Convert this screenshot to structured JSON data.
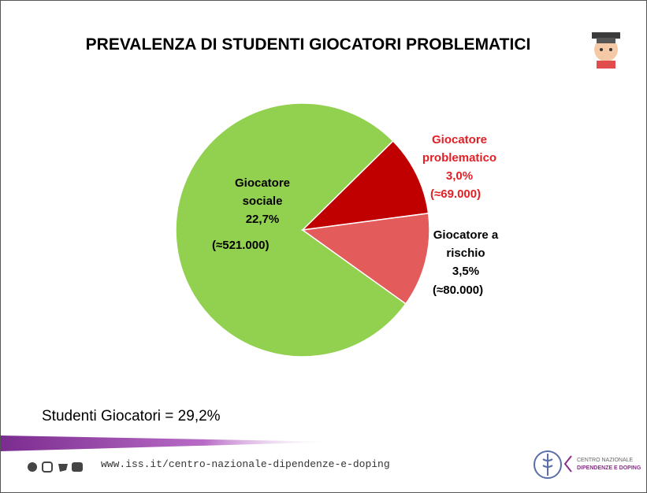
{
  "header": {
    "title": "PREVALENZA DI STUDENTI GIOCATORI PROBLEMATICI"
  },
  "chart_data": {
    "type": "pie",
    "categories": [
      "Giocatore sociale",
      "Giocatore problematico",
      "Giocatore a rischio"
    ],
    "values": [
      22.7,
      3.0,
      3.5
    ],
    "value_labels": [
      "22,7%",
      "3,0%",
      "3,5%"
    ],
    "annotations": [
      "(≈521.000)",
      "(≈69.000)",
      "(≈80.000)"
    ],
    "colors": [
      "#92d050",
      "#c00000",
      "#e35b5b"
    ],
    "label_colors": [
      "#000000",
      "#e31f26",
      "#000000"
    ]
  },
  "summary": "Studenti Giocatori = 29,2%",
  "footer": {
    "url": "www.iss.it/centro-nazionale-dipendenze-e-doping",
    "logo_line1": "CENTRO NAZIONALE",
    "logo_line2": "DIPENDENZE E DOPING"
  }
}
